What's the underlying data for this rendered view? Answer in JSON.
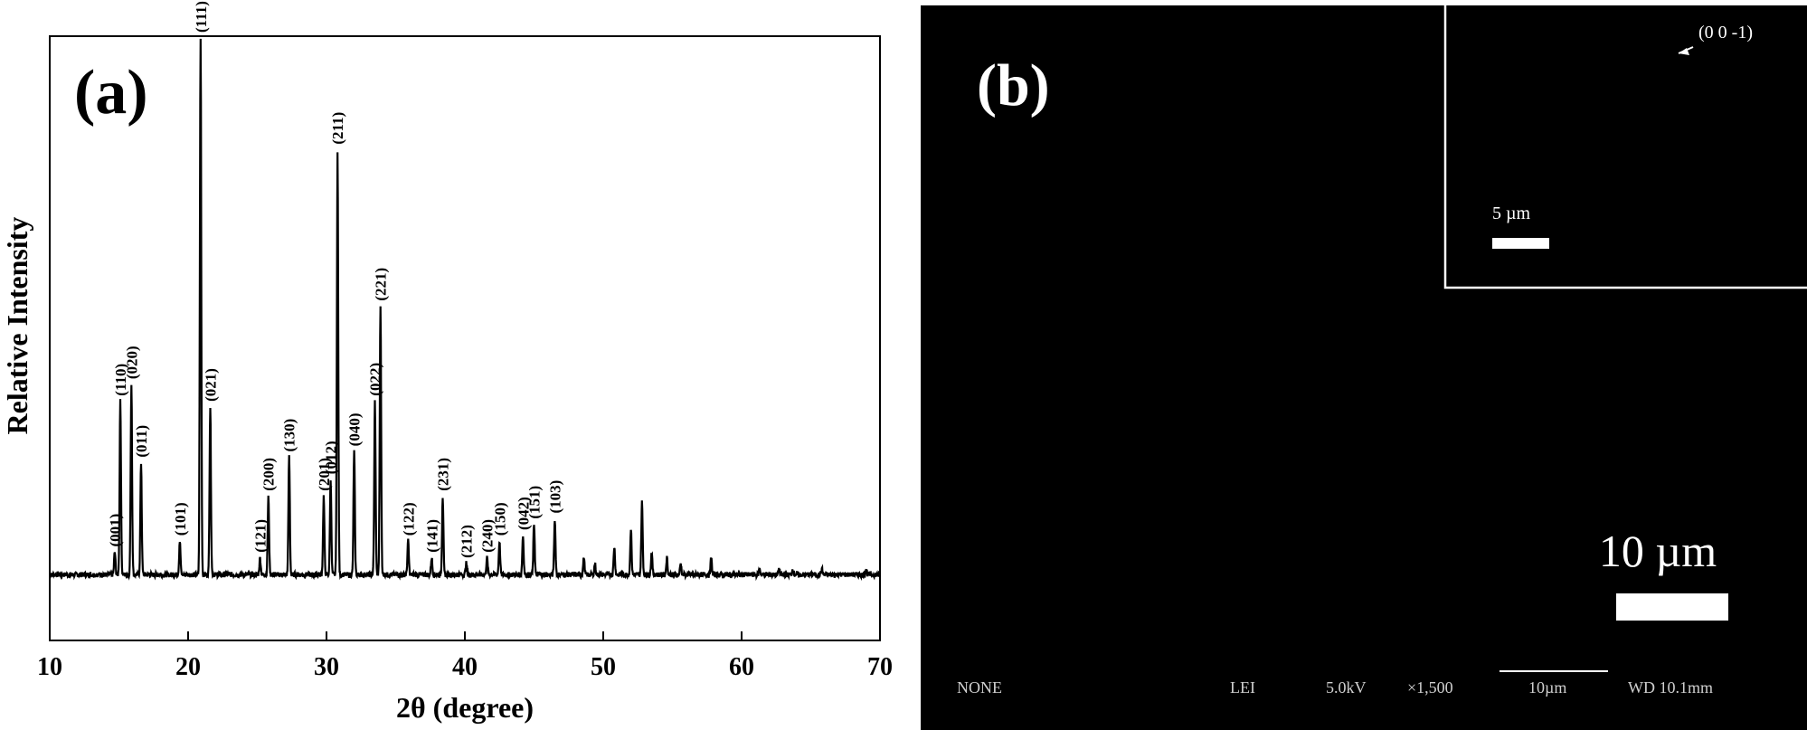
{
  "panel_a": {
    "label": "(a)"
  },
  "panel_b": {
    "label": "(b)",
    "scale_bar_label": "10 µm",
    "inset_scale_label": "5 µm",
    "inset_annotation": "(0 0 -1)",
    "info_bar": [
      "NONE",
      "LEI",
      "5.0kV",
      "×1,500",
      "10µm",
      "WD 10.1mm"
    ]
  },
  "chart_data": {
    "type": "line",
    "title": "",
    "xlabel": "2θ (degree)",
    "ylabel": "Relative Intensity",
    "xlim": [
      10,
      70
    ],
    "ylim": [
      0,
      100
    ],
    "xticks": [
      10,
      20,
      30,
      40,
      50,
      60,
      70
    ],
    "grid": false,
    "legend": "none",
    "baseline": 4,
    "peaks": [
      {
        "x": 14.7,
        "y": 8,
        "label": "(001)"
      },
      {
        "x": 15.1,
        "y": 35,
        "label": "(110)"
      },
      {
        "x": 15.9,
        "y": 38,
        "label": "(020)"
      },
      {
        "x": 16.6,
        "y": 24,
        "label": "(011)"
      },
      {
        "x": 19.4,
        "y": 10,
        "label": "(101)"
      },
      {
        "x": 20.9,
        "y": 100,
        "label": "(111)"
      },
      {
        "x": 21.6,
        "y": 34,
        "label": "(021)"
      },
      {
        "x": 25.2,
        "y": 7,
        "label": "(121)"
      },
      {
        "x": 25.8,
        "y": 18,
        "label": "(200)"
      },
      {
        "x": 27.3,
        "y": 25,
        "label": "(130)"
      },
      {
        "x": 29.8,
        "y": 18,
        "label": "(201)"
      },
      {
        "x": 30.3,
        "y": 21,
        "label": "(012)"
      },
      {
        "x": 30.8,
        "y": 80,
        "label": "(211)"
      },
      {
        "x": 32.0,
        "y": 26,
        "label": "(040)"
      },
      {
        "x": 33.5,
        "y": 35,
        "label": "(022)"
      },
      {
        "x": 33.9,
        "y": 52,
        "label": "(221)"
      },
      {
        "x": 35.9,
        "y": 10,
        "label": "(122)"
      },
      {
        "x": 37.6,
        "y": 7,
        "label": "(141)"
      },
      {
        "x": 38.4,
        "y": 18,
        "label": "(231)"
      },
      {
        "x": 40.1,
        "y": 6,
        "label": "(212)"
      },
      {
        "x": 41.6,
        "y": 7,
        "label": "(240)"
      },
      {
        "x": 42.5,
        "y": 10,
        "label": "(150)"
      },
      {
        "x": 44.2,
        "y": 11,
        "label": "(042)"
      },
      {
        "x": 45.0,
        "y": 13,
        "label": "(151)"
      },
      {
        "x": 46.5,
        "y": 14,
        "label": "(103)"
      },
      {
        "x": 48.6,
        "y": 7,
        "label": ""
      },
      {
        "x": 49.4,
        "y": 6,
        "label": ""
      },
      {
        "x": 50.8,
        "y": 9,
        "label": ""
      },
      {
        "x": 52.0,
        "y": 12,
        "label": ""
      },
      {
        "x": 52.8,
        "y": 17,
        "label": ""
      },
      {
        "x": 53.5,
        "y": 8,
        "label": ""
      },
      {
        "x": 54.6,
        "y": 7,
        "label": ""
      },
      {
        "x": 55.6,
        "y": 6,
        "label": ""
      },
      {
        "x": 57.8,
        "y": 7,
        "label": ""
      },
      {
        "x": 61.3,
        "y": 5,
        "label": ""
      },
      {
        "x": 62.7,
        "y": 5,
        "label": ""
      },
      {
        "x": 63.7,
        "y": 5,
        "label": ""
      },
      {
        "x": 65.8,
        "y": 5,
        "label": ""
      },
      {
        "x": 69.0,
        "y": 5,
        "label": ""
      }
    ]
  }
}
